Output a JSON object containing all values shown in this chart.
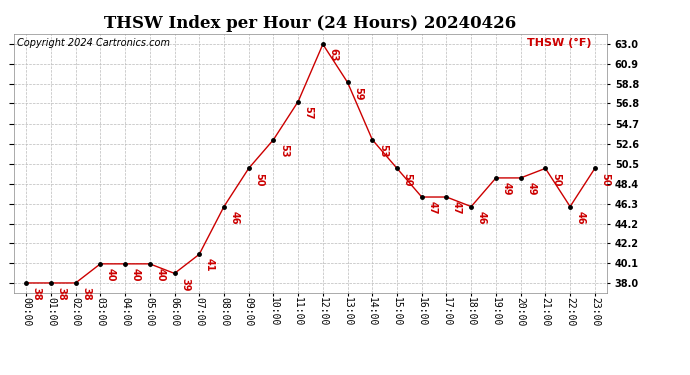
{
  "title": "THSW Index per Hour (24 Hours) 20240426",
  "copyright": "Copyright 2024 Cartronics.com",
  "legend_label": "THSW (°F)",
  "hours": [
    "00:00",
    "01:00",
    "02:00",
    "03:00",
    "04:00",
    "05:00",
    "06:00",
    "07:00",
    "08:00",
    "09:00",
    "10:00",
    "11:00",
    "12:00",
    "13:00",
    "14:00",
    "15:00",
    "16:00",
    "17:00",
    "18:00",
    "19:00",
    "20:00",
    "21:00",
    "22:00",
    "23:00"
  ],
  "values": [
    38,
    38,
    38,
    40,
    40,
    40,
    39,
    41,
    46,
    50,
    53,
    57,
    63,
    59,
    53,
    50,
    47,
    47,
    46,
    49,
    49,
    50,
    46,
    50
  ],
  "line_color": "#cc0000",
  "marker_color": "#000000",
  "grid_color": "#bbbbbb",
  "bg_color": "#ffffff",
  "ylim_min": 37.0,
  "ylim_max": 64.1,
  "yticks": [
    38.0,
    40.1,
    42.2,
    44.2,
    46.3,
    48.4,
    50.5,
    52.6,
    54.7,
    56.8,
    58.8,
    60.9,
    63.0
  ],
  "ytick_labels": [
    "38.0",
    "40.1",
    "42.2",
    "44.2",
    "46.3",
    "48.4",
    "50.5",
    "52.6",
    "54.7",
    "56.8",
    "58.8",
    "60.9",
    "63.0"
  ],
  "title_fontsize": 12,
  "copyright_fontsize": 7,
  "legend_fontsize": 8,
  "tick_fontsize": 7,
  "annotation_fontsize": 7
}
